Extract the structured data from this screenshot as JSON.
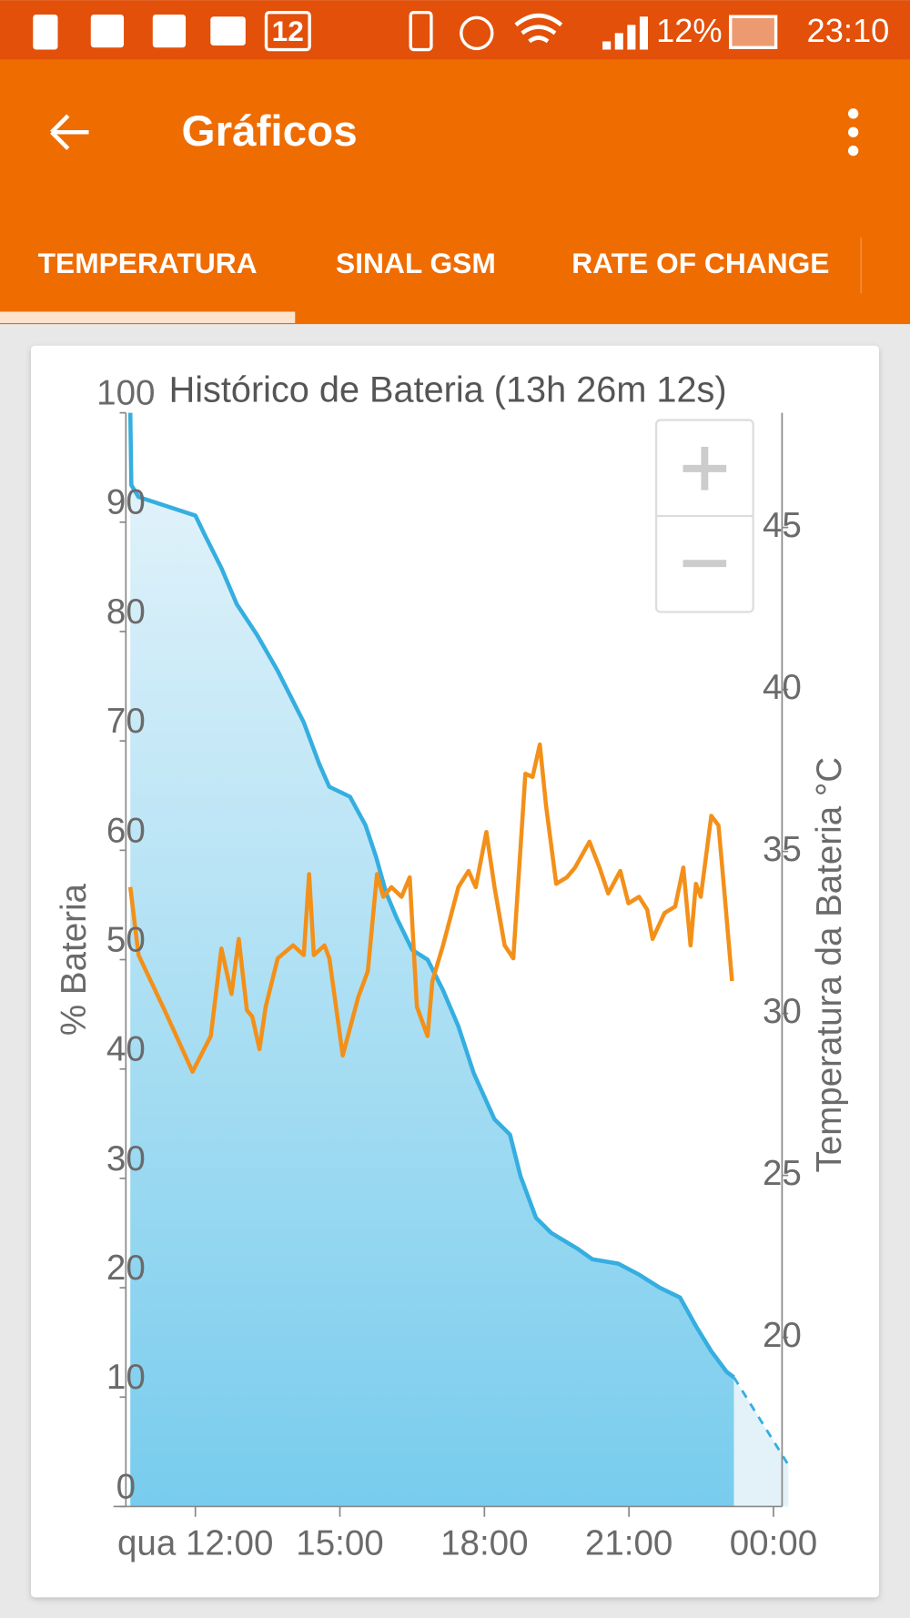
{
  "status_bar": {
    "notification_count": "12",
    "battery": "12%",
    "time": "23:10"
  },
  "app_bar": {
    "title": "Gráficos"
  },
  "tabs": [
    "TEMPERATURA",
    "SINAL GSM",
    "RATE OF CHANGE"
  ],
  "chart_data": {
    "type": "line",
    "title": "Histórico de Bateria (13h 26m 12s)",
    "y_label": "% Bateria",
    "y2_label": "Temperatura da Bateria °C",
    "xlim": [
      10.6,
      24.35
    ],
    "xticks": [
      {
        "value": 12,
        "label": "qua 12:00"
      },
      {
        "value": 15,
        "label": "15:00"
      },
      {
        "value": 18,
        "label": "18:00"
      },
      {
        "value": 21,
        "label": "21:00"
      },
      {
        "value": 24,
        "label": "00:00"
      }
    ],
    "ylim": [
      0,
      100
    ],
    "yticks": [
      0,
      10,
      20,
      30,
      40,
      50,
      60,
      70,
      80,
      90,
      100
    ],
    "y2lim": [
      14.78,
      48.54
    ],
    "y2ticks": [
      20,
      25,
      30,
      35,
      40,
      45
    ],
    "grid": false,
    "series": [
      {
        "color": "#35aee0",
        "fill": true,
        "x": [
          10.65,
          10.67,
          10.82,
          12,
          12.21,
          12.54,
          12.86,
          13.28,
          13.71,
          14.25,
          14.57,
          14.78,
          15.21,
          15.53,
          15.75,
          15.96,
          16.18,
          16.5,
          16.82,
          17.14,
          17.46,
          17.78,
          18.21,
          18.53,
          18.75,
          19.07,
          19.39,
          19.92,
          20.24,
          20.78,
          21.21,
          21.64,
          22.06,
          22.39,
          22.71,
          23.03,
          23.18
        ],
        "values": [
          100,
          93.4,
          92.3,
          90.6,
          88.7,
          85.8,
          82.5,
          79.7,
          76.4,
          71.7,
          67.9,
          65.8,
          64.9,
          62.3,
          59.4,
          56.1,
          53.8,
          50.9,
          50,
          47.2,
          43.9,
          39.6,
          35.4,
          34,
          30.2,
          26.4,
          25,
          23.6,
          22.6,
          22.2,
          21.2,
          20,
          19.1,
          16.5,
          14.2,
          12.3,
          11.8
        ]
      },
      {
        "color": "#35aee0",
        "fill": true,
        "dashed": true,
        "x": [
          23.18,
          24.31
        ],
        "values": [
          11.8,
          3.8
        ]
      },
      {
        "color": "#f39019",
        "fill": false,
        "axis": "y2",
        "x": [
          10.65,
          10.82,
          11.36,
          11.94,
          12.32,
          12.54,
          12.75,
          12.9,
          13.07,
          13.18,
          13.33,
          13.46,
          13.71,
          14.03,
          14.25,
          14.36,
          14.46,
          14.68,
          14.78,
          15.06,
          15.38,
          15.58,
          15.77,
          15.9,
          16.07,
          16.28,
          16.45,
          16.6,
          16.82,
          16.92,
          17.14,
          17.46,
          17.67,
          17.82,
          18.04,
          18.21,
          18.42,
          18.6,
          18.85,
          19.0,
          19.15,
          19.28,
          19.49,
          19.71,
          19.88,
          20.18,
          20.39,
          20.57,
          20.82,
          20.99,
          21.21,
          21.38,
          21.49,
          21.74,
          21.96,
          22.13,
          22.28,
          22.39,
          22.49,
          22.71,
          22.86,
          22.99,
          23.14
        ],
        "values": [
          33.9,
          31.8,
          30.1,
          28.2,
          29.3,
          32.0,
          30.6,
          32.3,
          30.1,
          29.9,
          28.9,
          30.2,
          31.7,
          32.1,
          31.8,
          34.3,
          31.8,
          32.1,
          31.7,
          28.7,
          30.5,
          31.3,
          34.3,
          33.6,
          33.9,
          33.6,
          34.2,
          30.2,
          29.3,
          31.0,
          32.1,
          33.9,
          34.4,
          33.9,
          35.6,
          33.9,
          32.1,
          31.7,
          37.4,
          37.3,
          38.3,
          36.4,
          34.0,
          34.2,
          34.5,
          35.3,
          34.5,
          33.7,
          34.4,
          33.4,
          33.6,
          33.2,
          32.3,
          33.1,
          33.3,
          34.5,
          32.1,
          34.0,
          33.6,
          36.1,
          35.8,
          33.6,
          31.0
        ]
      }
    ]
  }
}
